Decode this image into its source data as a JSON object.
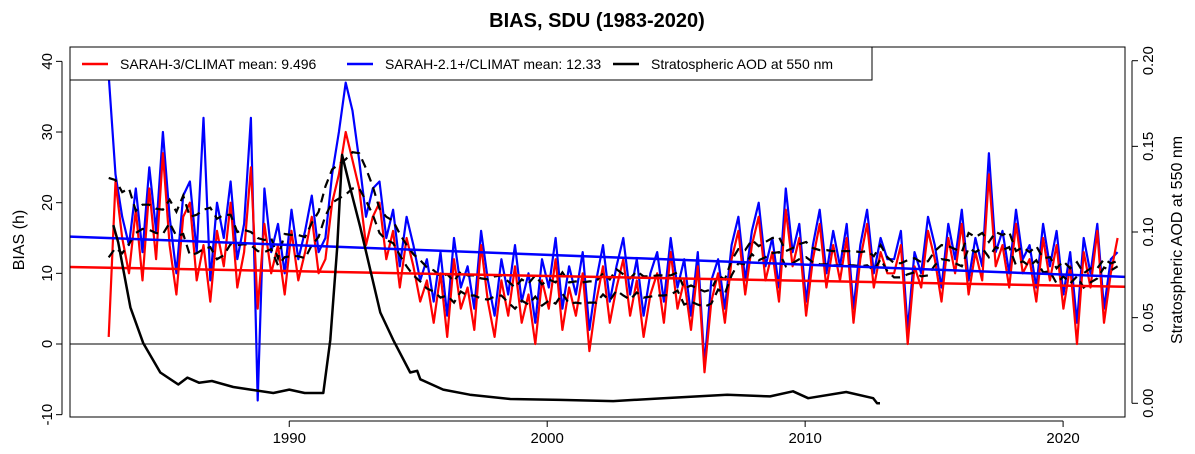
{
  "chart_data": {
    "type": "line",
    "title": "BIAS, SDU (1983-2020)",
    "xlabel": "",
    "ylabel": "BIAS (h)",
    "ylabel_right": "Stratospheric AOD at 550 nm",
    "xlim": [
      1981.5,
      2022.4
    ],
    "ylim": [
      -10,
      40
    ],
    "ylim_right": [
      0,
      0.2
    ],
    "x_ticks": [
      1990,
      2000,
      2010,
      2020
    ],
    "x_tick_labels": [
      "1990",
      "2000",
      "2010",
      "2020"
    ],
    "y_ticks": [
      -10,
      0,
      10,
      20,
      30,
      40
    ],
    "y_tick_labels": [
      "-10",
      "0",
      "10",
      "20",
      "30",
      "40"
    ],
    "y_right_ticks": [
      0,
      0.05,
      0.1,
      0.15,
      0.2
    ],
    "y_right_tick_labels": [
      "0.00",
      "0.05",
      "0.10",
      "0.15",
      "0.20"
    ],
    "zero_line": 0,
    "legend_position": "top-left",
    "legend": [
      {
        "label": "SARAH-3/CLIMAT mean: 9.496",
        "color": "#ff0000"
      },
      {
        "label": "SARAH-2.1+/CLIMAT mean: 12.33",
        "color": "#0000ff"
      },
      {
        "label": "Stratospheric AOD at 550 nm",
        "color": "#000000"
      }
    ],
    "x_start": 1983.0,
    "x_step": 0.2625,
    "series": [
      {
        "name": "SARAH-2.1+/CLIMAT",
        "color": "#0000ff",
        "values": [
          38,
          24,
          18,
          14,
          22,
          13,
          25,
          16,
          30,
          18,
          10,
          21,
          23,
          13,
          32,
          9,
          20,
          15,
          23,
          12,
          17,
          32,
          -8,
          22,
          13,
          17,
          10,
          19,
          12,
          16,
          21,
          13,
          15,
          24,
          30,
          37,
          33,
          26,
          18,
          22,
          23,
          15,
          19,
          11,
          18,
          14,
          9,
          12,
          6,
          13,
          4,
          15,
          8,
          11,
          5,
          16,
          9,
          4,
          12,
          7,
          14,
          6,
          10,
          3,
          12,
          8,
          15,
          5,
          11,
          7,
          13,
          2,
          9,
          14,
          6,
          11,
          15,
          7,
          12,
          4,
          10,
          13,
          6,
          15,
          8,
          12,
          4,
          13,
          -3,
          9,
          12,
          5,
          14,
          18,
          9,
          16,
          20,
          11,
          15,
          8,
          22,
          13,
          17,
          6,
          14,
          19,
          10,
          16,
          11,
          17,
          5,
          14,
          19,
          10,
          15,
          12,
          12,
          16,
          2,
          13,
          10,
          18,
          14,
          8,
          17,
          12,
          19,
          9,
          15,
          11,
          27,
          13,
          16,
          10,
          19,
          12,
          14,
          8,
          17,
          11,
          16,
          7,
          13,
          3,
          15,
          10,
          17,
          5,
          12,
          13
        ],
        "trend": {
          "x": [
            1981.5,
            2022.4
          ],
          "y": [
            15.2,
            9.5
          ]
        }
      },
      {
        "name": "SARAH-3/CLIMAT",
        "color": "#ff0000",
        "values": [
          1,
          23,
          15,
          10,
          19,
          9,
          22,
          12,
          27,
          14,
          7,
          18,
          20,
          9,
          14,
          6,
          16,
          11,
          20,
          8,
          13,
          25,
          5,
          17,
          10,
          14,
          7,
          16,
          9,
          13,
          18,
          10,
          12,
          20,
          24,
          30,
          26,
          22,
          14,
          18,
          20,
          12,
          16,
          8,
          15,
          11,
          6,
          9,
          3,
          10,
          1,
          12,
          5,
          8,
          2,
          14,
          6,
          1,
          9,
          4,
          11,
          3,
          7,
          0,
          9,
          5,
          12,
          2,
          8,
          4,
          10,
          -1,
          6,
          11,
          3,
          8,
          12,
          4,
          9,
          1,
          7,
          10,
          3,
          13,
          5,
          9,
          2,
          11,
          -4,
          6,
          10,
          3,
          12,
          16,
          7,
          14,
          18,
          9,
          13,
          6,
          19,
          11,
          15,
          4,
          12,
          17,
          8,
          14,
          9,
          15,
          3,
          12,
          17,
          8,
          13,
          10,
          10,
          14,
          0,
          11,
          8,
          16,
          12,
          6,
          15,
          10,
          17,
          7,
          13,
          9,
          24,
          11,
          14,
          8,
          17,
          10,
          12,
          6,
          15,
          9,
          14,
          5,
          11,
          0,
          13,
          8,
          16,
          3,
          10,
          15
        ],
        "trend": {
          "x": [
            1981.5,
            2022.4
          ],
          "y": [
            10.9,
            8.1
          ]
        }
      },
      {
        "name": "Stratospheric AOD at 550 nm",
        "color": "#000000",
        "axis": "right",
        "x": [
          1983.18,
          1983.37,
          1983.84,
          1984.34,
          1985.0,
          1985.7,
          1986.05,
          1986.5,
          1987.0,
          1987.83,
          1988.5,
          1989.38,
          1990.0,
          1990.6,
          1991.32,
          1991.59,
          1991.86,
          1992.05,
          1992.36,
          1992.75,
          1993.53,
          1994.03,
          1994.69,
          1994.96,
          1995.08,
          1995.97,
          1997.0,
          1998.57,
          2000.5,
          2002.56,
          2004.5,
          2006.98,
          2008.64,
          2009.53,
          2010.12,
          2011.59,
          2012.64,
          2012.79,
          2012.9
        ],
        "values": [
          0.104,
          0.094,
          0.056,
          0.035,
          0.018,
          0.011,
          0.015,
          0.012,
          0.013,
          0.0095,
          0.008,
          0.006,
          0.008,
          0.006,
          0.006,
          0.037,
          0.091,
          0.145,
          0.126,
          0.103,
          0.053,
          0.037,
          0.018,
          0.019,
          0.014,
          0.008,
          0.005,
          0.0025,
          0.002,
          0.0013,
          0.003,
          0.005,
          0.004,
          0.007,
          0.003,
          0.0066,
          0.003,
          0.0,
          0.0
        ]
      }
    ],
    "running_mean_note": "dashed black lines = running means of each bias series"
  }
}
